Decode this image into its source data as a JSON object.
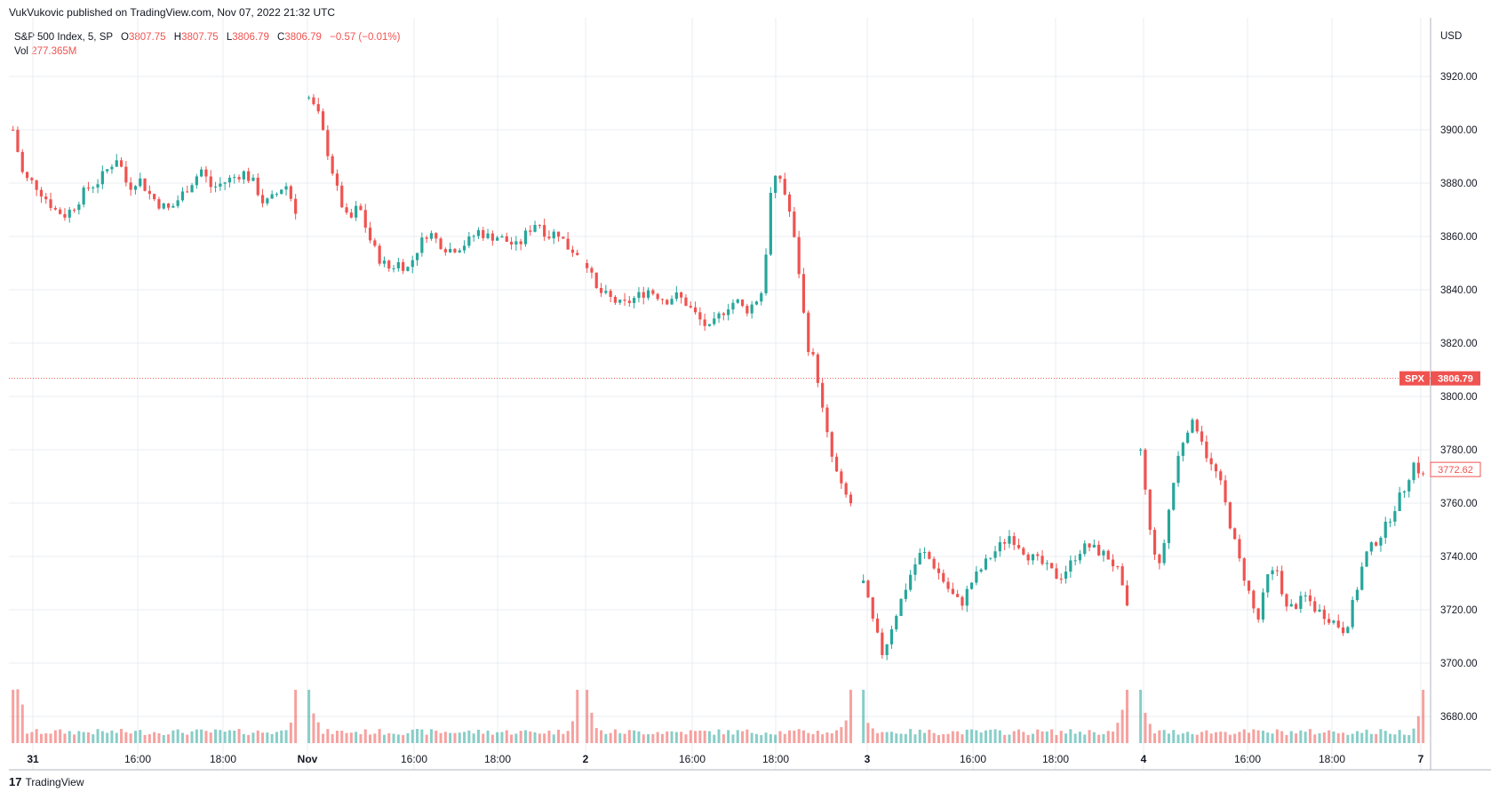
{
  "header": {
    "published_text": "VukVukovic published on TradingView.com, Nov 07, 2022 21:32 UTC"
  },
  "legend": {
    "symbol": "S&P 500 Index, 5, SP",
    "open_label": "O",
    "open": "3807.75",
    "high_label": "H",
    "high": "3807.75",
    "low_label": "L",
    "low": "3806.79",
    "close_label": "C",
    "close": "3806.79",
    "change": "−0.57 (−0.01%)",
    "vol_label": "Vol",
    "vol": "277.365M"
  },
  "footer": {
    "brand": "TradingView",
    "logo_glyph": "17"
  },
  "colors": {
    "up": "#26a69a",
    "down": "#ef5350",
    "grid": "#e9edf2",
    "axis_text": "#131722"
  },
  "chart_data": {
    "type": "candlestick",
    "symbol": "SPX",
    "interval": "5",
    "currency": "USD",
    "price_range": [
      3660,
      3942
    ],
    "y_ticks": [
      3680,
      3700,
      3720,
      3740,
      3760,
      3780,
      3800,
      3820,
      3840,
      3860,
      3880,
      3900,
      3920
    ],
    "x_tick_labels": [
      "31",
      "16:00",
      "18:00",
      "Nov",
      "16:00",
      "18:00",
      "2",
      "16:00",
      "18:00",
      "3",
      "16:00",
      "18:00",
      "4",
      "16:00",
      "18:00",
      "7"
    ],
    "last_price": {
      "symbol": "SPX",
      "value": "3806.79"
    },
    "secondary_price": "3772.62",
    "grid": true,
    "volume_shown": true,
    "price_path": [
      [
        3900,
        3882,
        3880,
        3875,
        3870,
        3868,
        3872,
        3878,
        3880,
        3885,
        3890,
        3878,
        3882,
        3876,
        3872,
        3870,
        3875,
        3880,
        3885,
        3878,
        3880,
        3882,
        3884,
        3880,
        3872,
        3875,
        3880,
        3870
      ],
      [
        3912,
        3905,
        3890,
        3875,
        3865,
        3872,
        3860,
        3852,
        3848,
        3850,
        3848,
        3856,
        3862,
        3858,
        3855,
        3856,
        3858,
        3862,
        3860,
        3860,
        3858,
        3856,
        3862,
        3866,
        3860,
        3862,
        3856,
        3854
      ],
      [
        3850,
        3840,
        3838,
        3836,
        3834,
        3836,
        3838,
        3840,
        3838,
        3836,
        3838,
        3836,
        3832,
        3828,
        3825,
        3830,
        3834,
        3836,
        3832,
        3835,
        3840,
        3880,
        3882,
        3870,
        3850,
        3820,
        3812,
        3790,
        3775,
        3765,
        3760
      ],
      [
        3730,
        3715,
        3703,
        3715,
        3725,
        3735,
        3742,
        3738,
        3732,
        3726,
        3722,
        3730,
        3735,
        3740,
        3744,
        3748,
        3744,
        3740,
        3738,
        3735,
        3732,
        3736,
        3742,
        3744,
        3742,
        3740,
        3735,
        3720
      ],
      [
        3780,
        3748,
        3735,
        3760,
        3780,
        3790,
        3788,
        3775,
        3770,
        3755,
        3740,
        3728,
        3715,
        3732,
        3735,
        3720,
        3722,
        3725,
        3720,
        3718,
        3715,
        3712,
        3725,
        3740,
        3745,
        3750,
        3758,
        3765,
        3775,
        3770
      ]
    ],
    "volume_spike_multipliers": [
      12,
      25,
      18,
      16,
      17,
      14,
      14,
      20,
      15,
      18,
      16,
      17,
      12,
      8,
      7,
      5,
      6,
      5,
      4,
      4,
      6,
      7,
      8,
      9,
      10,
      12,
      15,
      18,
      20,
      25
    ]
  }
}
